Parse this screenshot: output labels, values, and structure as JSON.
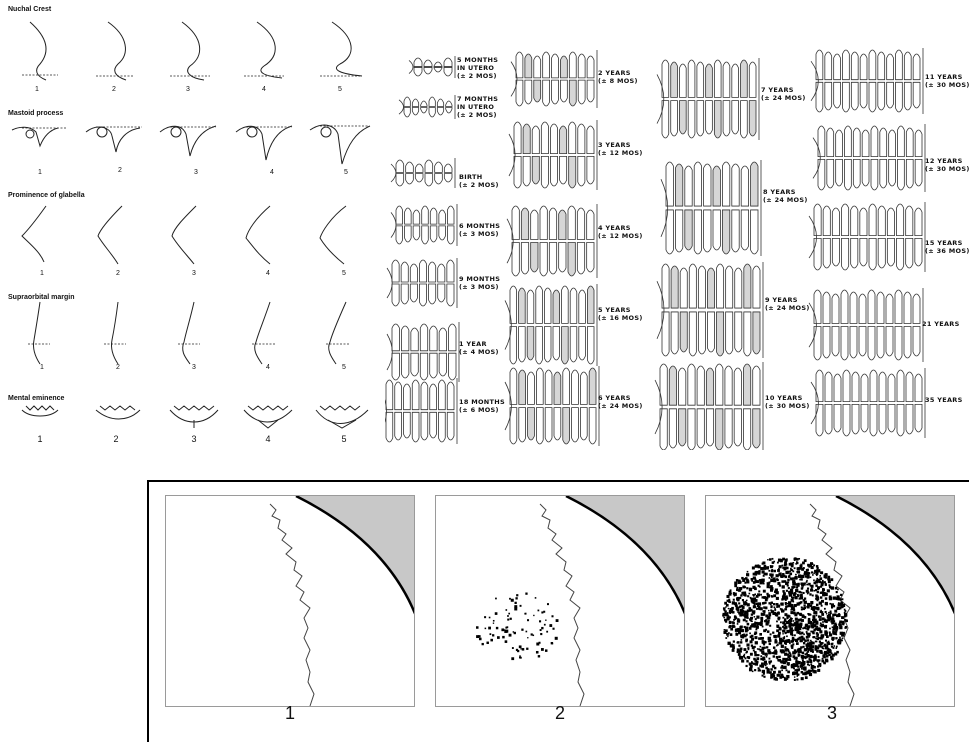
{
  "sex_scoring": {
    "traits": [
      {
        "id": "nuchal",
        "title": "Nuchal Crest"
      },
      {
        "id": "mastoid",
        "title": "Mastoid process"
      },
      {
        "id": "glabella",
        "title": "Prominence of glabella"
      },
      {
        "id": "supraorbital",
        "title": "Supraorbital margin"
      },
      {
        "id": "mental",
        "title": "Mental eminence"
      }
    ],
    "scores": [
      "1",
      "2",
      "3",
      "4",
      "5"
    ]
  },
  "dental_development": {
    "stages": [
      {
        "line1": "5 MONTHS",
        "line2": "IN UTERO",
        "line3": "(± 2 MOS)"
      },
      {
        "line1": "7 MONTHS",
        "line2": "IN UTERO",
        "line3": "(± 2 MOS)"
      },
      {
        "line1": "BIRTH",
        "line2": "(± 2 MOS)"
      },
      {
        "line1": "6 MONTHS",
        "line2": "(± 3 MOS)"
      },
      {
        "line1": "9 MONTHS",
        "line2": "(± 3 MOS)"
      },
      {
        "line1": "1 YEAR",
        "line2": "(± 4 MOS)"
      },
      {
        "line1": "18 MONTHS",
        "line2": "(± 6 MOS)"
      },
      {
        "line1": "2 YEARS",
        "line2": "(± 8 MOS)"
      },
      {
        "line1": "3 YEARS",
        "line2": "(± 12 MOS)"
      },
      {
        "line1": "4 YEARS",
        "line2": "(± 12 MOS)"
      },
      {
        "line1": "5 YEARS",
        "line2": "(± 16 MOS)"
      },
      {
        "line1": "6 YEARS",
        "line2": "(± 24 MOS)"
      },
      {
        "line1": "7 YEARS",
        "line2": "(± 24 MOS)"
      },
      {
        "line1": "8 YEARS",
        "line2": "(± 24 MOS)"
      },
      {
        "line1": "9 YEARS",
        "line2": "(± 24 MOS)"
      },
      {
        "line1": "10 YEARS",
        "line2": "(± 30 MOS)"
      },
      {
        "line1": "11 YEARS",
        "line2": "(± 30 MOS)"
      },
      {
        "line1": "12 YEARS",
        "line2": "(± 30 MOS)"
      },
      {
        "line1": "15 YEARS",
        "line2": "(± 36 MOS)"
      },
      {
        "line1": "21 YEARS"
      },
      {
        "line1": "35 YEARS"
      }
    ]
  },
  "suture_stages": {
    "labels": [
      "1",
      "2",
      "3"
    ]
  }
}
